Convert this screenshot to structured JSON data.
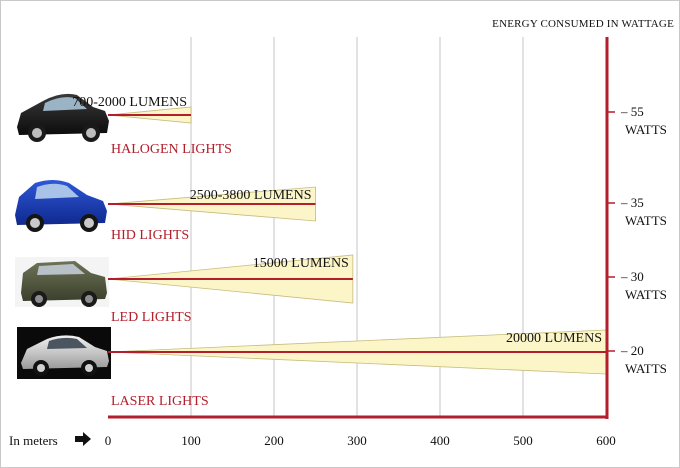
{
  "chart_data": {
    "type": "bar",
    "y_axis_title": "ENERGY CONSUMED IN WATTAGE",
    "x_axis_label": "In meters",
    "x_axis_arrow_icon": "right-arrow-icon",
    "xlim": [
      0,
      600
    ],
    "x_ticks": [
      "0",
      "100",
      "200",
      "300",
      "400",
      "500",
      "600"
    ],
    "grid": true,
    "categories": [
      "HALOGEN LIGHTS",
      "HID LIGHTS",
      "LED LIGHTS",
      "LASER LIGHTS"
    ],
    "series": [
      {
        "values": [
          100,
          250,
          295,
          600
        ],
        "lumens_labels": [
          "700-2000  LUMENS",
          "2500-3800  LUMENS",
          "15000 LUMENS",
          "20000  LUMENS"
        ],
        "watt_values": [
          "55",
          "35",
          "30",
          "20"
        ],
        "watt_unit": "WATTS"
      }
    ],
    "car_icons": [
      "black-sedan-icon",
      "blue-hatchback-icon",
      "green-suv-icon",
      "silver-sedan-icon"
    ],
    "colors": {
      "axis": "#b21e2b",
      "beam": "#fbf5c8",
      "beam_edge": "#c6bc7c",
      "grid": "#d9d9d9",
      "label": "#b21e2b",
      "text": "#111111"
    }
  }
}
